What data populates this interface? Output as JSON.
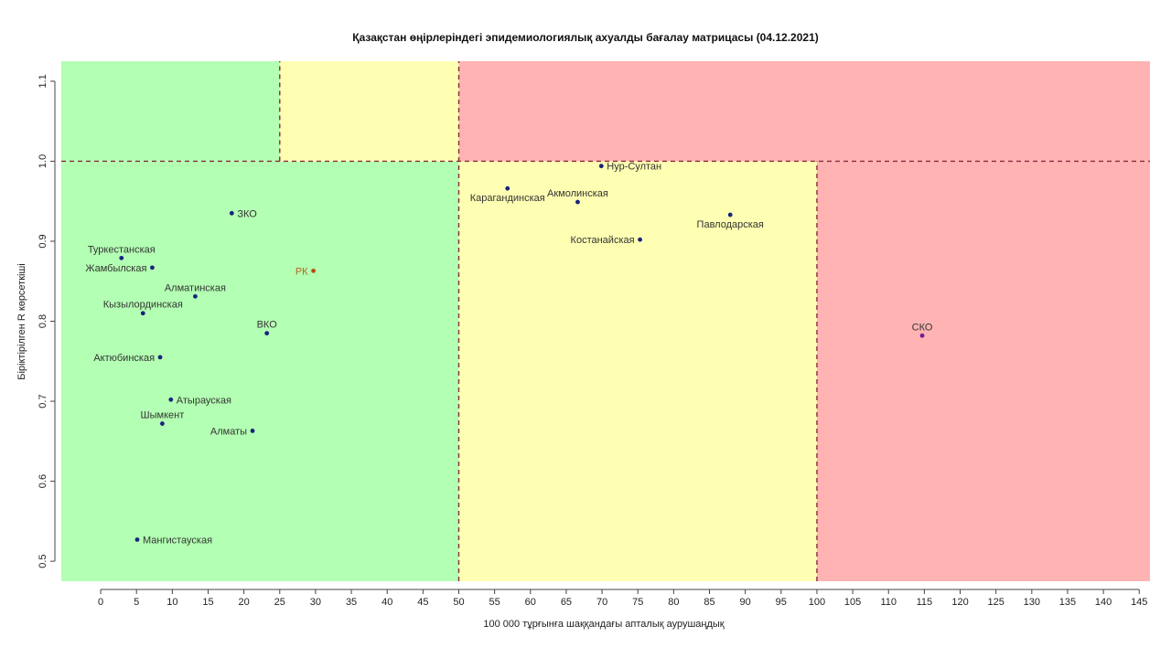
{
  "chart_data": {
    "type": "scatter",
    "title": "Қазақстан өңірлеріндегі эпидемиологиялық ахуалды бағалау матрицасы  (04.12.2021)",
    "xlabel": "100 000 тұрғынға шаққандағы апталық аурушаңдық",
    "ylabel": "Біріктірілген R көрсеткіші",
    "xlim": [
      -5.5,
      146.5
    ],
    "ylim": [
      0.475,
      1.125
    ],
    "x_ticks": [
      0,
      5,
      10,
      15,
      20,
      25,
      30,
      35,
      40,
      45,
      50,
      55,
      60,
      65,
      70,
      75,
      80,
      85,
      90,
      95,
      100,
      105,
      110,
      115,
      120,
      125,
      130,
      135,
      140,
      145
    ],
    "y_ticks": [
      0.5,
      0.6,
      0.7,
      0.8,
      0.9,
      1.0,
      1.1
    ],
    "grid": false,
    "zones": [
      {
        "x": [
          -5.5,
          50
        ],
        "y": [
          0.475,
          1.0
        ],
        "color": "#b3ffb3"
      },
      {
        "x": [
          -5.5,
          25
        ],
        "y": [
          1.0,
          1.125
        ],
        "color": "#b3ffb3"
      },
      {
        "x": [
          25,
          50
        ],
        "y": [
          1.0,
          1.125
        ],
        "color": "#ffffb3"
      },
      {
        "x": [
          50,
          100
        ],
        "y": [
          0.475,
          1.0
        ],
        "color": "#ffffb3"
      },
      {
        "x": [
          50,
          146.5
        ],
        "y": [
          1.0,
          1.125
        ],
        "color": "#ffb3b3"
      },
      {
        "x": [
          100,
          146.5
        ],
        "y": [
          0.475,
          1.0
        ],
        "color": "#ffb3b3"
      }
    ],
    "threshold_lines": [
      {
        "axis": "y",
        "value": 1.0,
        "range": [
          -5.5,
          146.5
        ]
      },
      {
        "axis": "x",
        "value": 25,
        "range": [
          1.0,
          1.125
        ]
      },
      {
        "axis": "x",
        "value": 50,
        "range": [
          0.475,
          1.125
        ]
      },
      {
        "axis": "x",
        "value": 100,
        "range": [
          0.475,
          1.0
        ]
      }
    ],
    "line_color": "#8b2b3a",
    "points": [
      {
        "name": "ЗКО",
        "x": 18.3,
        "y": 0.935,
        "label_side": "right",
        "color": "#1a237e",
        "label_color": "#333333"
      },
      {
        "name": "Туркестанская",
        "x": 2.9,
        "y": 0.879,
        "label_side": "above",
        "color": "#1a237e",
        "label_color": "#333333"
      },
      {
        "name": "Жамбылская",
        "x": 7.2,
        "y": 0.867,
        "label_side": "left",
        "color": "#1a237e",
        "label_color": "#333333"
      },
      {
        "name": "РК",
        "x": 29.7,
        "y": 0.863,
        "label_side": "left",
        "color": "#b84a1a",
        "label_color": "#b5651d"
      },
      {
        "name": "Алматинская",
        "x": 13.2,
        "y": 0.831,
        "label_side": "above",
        "color": "#1a237e",
        "label_color": "#333333"
      },
      {
        "name": "Кызылординская",
        "x": 5.9,
        "y": 0.81,
        "label_side": "above",
        "color": "#1a237e",
        "label_color": "#333333"
      },
      {
        "name": "ВКО",
        "x": 23.2,
        "y": 0.785,
        "label_side": "above",
        "color": "#1a237e",
        "label_color": "#333333"
      },
      {
        "name": "Актюбинская",
        "x": 8.3,
        "y": 0.755,
        "label_side": "left",
        "color": "#1a237e",
        "label_color": "#333333"
      },
      {
        "name": "Атырауская",
        "x": 9.8,
        "y": 0.702,
        "label_side": "right",
        "color": "#1a237e",
        "label_color": "#333333"
      },
      {
        "name": "Шымкент",
        "x": 8.6,
        "y": 0.672,
        "label_side": "above",
        "color": "#1a237e",
        "label_color": "#333333"
      },
      {
        "name": "Алматы",
        "x": 21.2,
        "y": 0.663,
        "label_side": "left",
        "color": "#1a237e",
        "label_color": "#333333"
      },
      {
        "name": "Мангистауская",
        "x": 5.1,
        "y": 0.527,
        "label_side": "right",
        "color": "#1a237e",
        "label_color": "#333333"
      },
      {
        "name": "Нур-Султан",
        "x": 69.9,
        "y": 0.994,
        "label_side": "right",
        "color": "#1a237e",
        "label_color": "#333333"
      },
      {
        "name": "Карагандинская",
        "x": 56.8,
        "y": 0.966,
        "label_side": "below",
        "color": "#1a237e",
        "label_color": "#333333"
      },
      {
        "name": "Акмолинская",
        "x": 66.6,
        "y": 0.949,
        "label_side": "above",
        "color": "#1a237e",
        "label_color": "#333333"
      },
      {
        "name": "Павлодарская",
        "x": 87.9,
        "y": 0.933,
        "label_side": "below",
        "color": "#1a237e",
        "label_color": "#333333"
      },
      {
        "name": "Костанайская",
        "x": 75.3,
        "y": 0.902,
        "label_side": "left",
        "color": "#1a237e",
        "label_color": "#333333"
      },
      {
        "name": "СКО",
        "x": 114.7,
        "y": 0.782,
        "label_side": "above",
        "color": "#6a1b9a",
        "label_color": "#333333"
      }
    ]
  }
}
